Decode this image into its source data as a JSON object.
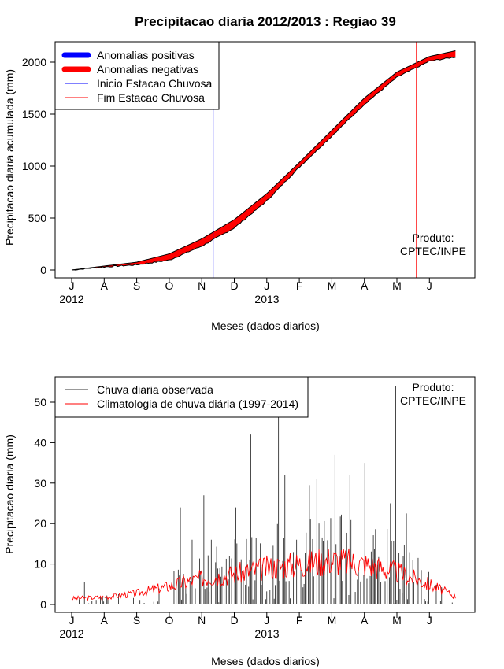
{
  "chart_data": [
    {
      "type": "area",
      "title": "Precipitacao diaria 2012/2013 : Regiao 39",
      "xlabel": "Meses (dados diarios)",
      "ylabel": "Precipitacao diaria acumulada (mm)",
      "ylim": [
        -60,
        2200
      ],
      "yticks": [
        0,
        500,
        1000,
        1500,
        2000
      ],
      "ytick_labels": [
        "0",
        "500",
        "1000",
        "1500",
        "2000"
      ],
      "month_labels": [
        "J",
        "A",
        "S",
        "O",
        "N",
        "D",
        "J",
        "F",
        "M",
        "A",
        "M",
        "J"
      ],
      "year_labels": [
        "2012",
        "2013"
      ],
      "legend": [
        "Anomalias positivas",
        "Anomalias negativas",
        "Inicio Estacao Chuvosa",
        "Fim Estacao Chuvosa"
      ],
      "legend_colors": [
        "#0000ff",
        "#ff0000",
        "#0000ff",
        "#ff0000"
      ],
      "legend_placement": "top-left",
      "annotation": [
        "Produto:",
        "CPTEC/INPE"
      ],
      "onset_month_index": 4.35,
      "end_month_index": 10.6,
      "series": [
        {
          "name": "Climatologia acumulada",
          "month_index": [
            0,
            1,
            2,
            3,
            4,
            5,
            6,
            7,
            8,
            9,
            10,
            11,
            11.8
          ],
          "values": [
            0,
            38,
            75,
            155,
            300,
            485,
            735,
            1035,
            1345,
            1655,
            1905,
            2055,
            2110
          ]
        },
        {
          "name": "Chuva observada acumulada",
          "month_index": [
            0,
            1,
            2,
            3,
            4,
            5,
            6,
            7,
            8,
            9,
            10,
            11,
            11.8
          ],
          "values": [
            0,
            30,
            50,
            95,
            230,
            405,
            665,
            990,
            1290,
            1595,
            1855,
            2010,
            2050
          ]
        }
      ]
    },
    {
      "type": "bar",
      "title": "",
      "xlabel": "Meses (dados diarios)",
      "ylabel": "Precipitacao diaria (mm)",
      "ylim": [
        -2,
        57
      ],
      "yticks": [
        0,
        10,
        20,
        30,
        40,
        50
      ],
      "ytick_labels": [
        "0",
        "10",
        "20",
        "30",
        "40",
        "50"
      ],
      "month_labels": [
        "J",
        "A",
        "S",
        "O",
        "N",
        "D",
        "J",
        "F",
        "M",
        "A",
        "M",
        "J"
      ],
      "year_labels": [
        "2012",
        "2013"
      ],
      "legend": [
        "Chuva diaria observada",
        "Climatologia de chuva diária (1997-2014)"
      ],
      "legend_colors": [
        "#333333",
        "#ff0000"
      ],
      "legend_placement": "top-left",
      "annotation": [
        "Produto:",
        "CPTEC/INPE"
      ],
      "climatology_month_index": [
        0,
        1,
        2,
        3,
        4,
        5,
        6,
        7,
        8,
        9,
        10,
        11,
        11.8
      ],
      "climatology_values": [
        1.5,
        1.8,
        2.8,
        4.5,
        6.5,
        7.5,
        9,
        10,
        11,
        10,
        8,
        5,
        2
      ],
      "peak_days": [
        {
          "month_index": 0.4,
          "value": 5.5
        },
        {
          "month_index": 3.35,
          "value": 24
        },
        {
          "month_index": 3.7,
          "value": 16
        },
        {
          "month_index": 4.05,
          "value": 27
        },
        {
          "month_index": 4.3,
          "value": 16
        },
        {
          "month_index": 4.85,
          "value": 12
        },
        {
          "month_index": 5.05,
          "value": 24
        },
        {
          "month_index": 5.5,
          "value": 42
        },
        {
          "month_index": 6.35,
          "value": 47
        },
        {
          "month_index": 6.55,
          "value": 32
        },
        {
          "month_index": 6.9,
          "value": 16
        },
        {
          "month_index": 7.3,
          "value": 29.5
        },
        {
          "month_index": 7.55,
          "value": 31
        },
        {
          "month_index": 8.1,
          "value": 37
        },
        {
          "month_index": 8.55,
          "value": 32
        },
        {
          "month_index": 9.0,
          "value": 35
        },
        {
          "month_index": 9.8,
          "value": 25
        },
        {
          "month_index": 9.95,
          "value": 54
        },
        {
          "month_index": 10.3,
          "value": 22.5
        },
        {
          "month_index": 10.5,
          "value": 11
        },
        {
          "month_index": 10.75,
          "value": 8.5
        }
      ]
    }
  ]
}
